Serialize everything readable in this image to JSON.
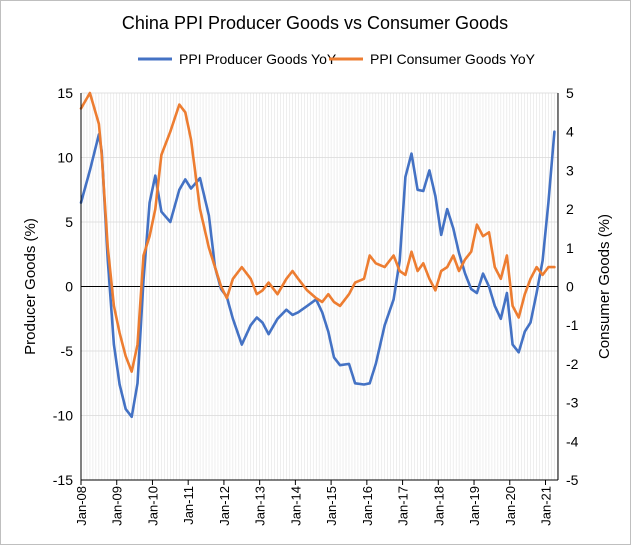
{
  "chart_data": {
    "type": "line",
    "title": "China PPI Producer Goods vs Consumer Goods",
    "ylabel": "Producer Goods (%)",
    "y2label": "Consumer Goods (%)",
    "ylim": [
      -15,
      15
    ],
    "y2lim": [
      -5,
      5
    ],
    "yticks": [
      -15,
      -10,
      -5,
      0,
      5,
      10,
      15
    ],
    "y2ticks": [
      -5,
      -4,
      -3,
      -2,
      -1,
      0,
      1,
      2,
      3,
      4,
      5
    ],
    "xticks": [
      "Jan-08",
      "Jan-09",
      "Jan-10",
      "Jan-11",
      "Jan-12",
      "Jan-13",
      "Jan-14",
      "Jan-15",
      "Jan-16",
      "Jan-17",
      "Jan-18",
      "Jan-19",
      "Jan-20",
      "Jan-21"
    ],
    "grid": true,
    "legend": "top-center",
    "x": [
      2008.0,
      2008.25,
      2008.5,
      2008.58,
      2008.75,
      2008.92,
      2009.08,
      2009.25,
      2009.42,
      2009.58,
      2009.75,
      2009.92,
      2010.08,
      2010.25,
      2010.5,
      2010.75,
      2010.92,
      2011.08,
      2011.33,
      2011.58,
      2011.75,
      2011.92,
      2012.08,
      2012.25,
      2012.5,
      2012.75,
      2012.92,
      2013.08,
      2013.25,
      2013.5,
      2013.75,
      2013.92,
      2014.08,
      2014.33,
      2014.58,
      2014.75,
      2014.92,
      2015.08,
      2015.25,
      2015.5,
      2015.67,
      2015.92,
      2016.08,
      2016.25,
      2016.5,
      2016.75,
      2016.92,
      2017.08,
      2017.25,
      2017.42,
      2017.58,
      2017.75,
      2017.92,
      2018.08,
      2018.25,
      2018.42,
      2018.58,
      2018.75,
      2018.92,
      2019.08,
      2019.25,
      2019.42,
      2019.58,
      2019.75,
      2019.92,
      2020.08,
      2020.25,
      2020.42,
      2020.58,
      2020.75,
      2020.92,
      2021.08,
      2021.25
    ],
    "series": [
      {
        "name": "PPI Producer Goods YoY",
        "axis": "left",
        "color": "#4472c4",
        "values": [
          6.5,
          9.0,
          11.8,
          10.5,
          2.0,
          -4.5,
          -7.6,
          -9.5,
          -10.1,
          -7.5,
          0.5,
          6.5,
          8.6,
          5.8,
          5.0,
          7.5,
          8.3,
          7.6,
          8.4,
          5.5,
          1.5,
          -0.2,
          -0.8,
          -2.5,
          -4.5,
          -3.0,
          -2.4,
          -2.8,
          -3.7,
          -2.5,
          -1.8,
          -2.2,
          -2.0,
          -1.5,
          -1.0,
          -2.0,
          -3.5,
          -5.5,
          -6.1,
          -6.0,
          -7.5,
          -7.6,
          -7.5,
          -6.0,
          -3.0,
          -1.0,
          2.0,
          8.5,
          10.3,
          7.5,
          7.4,
          9.0,
          7.0,
          4.0,
          6.0,
          4.5,
          2.6,
          1.0,
          -0.2,
          -0.5,
          1.0,
          0.0,
          -1.5,
          -2.5,
          -0.5,
          -4.5,
          -5.1,
          -3.5,
          -2.8,
          -0.5,
          2.0,
          6.5,
          12.0
        ]
      },
      {
        "name": "PPI Consumer Goods YoY",
        "axis": "right",
        "color": "#ed7d31",
        "values": [
          4.6,
          5.0,
          4.2,
          3.4,
          1.0,
          -0.5,
          -1.2,
          -1.8,
          -2.2,
          -1.5,
          0.8,
          1.3,
          2.0,
          3.4,
          4.0,
          4.7,
          4.5,
          3.8,
          2.0,
          1.0,
          0.5,
          0.0,
          -0.3,
          0.2,
          0.5,
          0.2,
          -0.2,
          -0.1,
          0.1,
          -0.2,
          0.2,
          0.4,
          0.2,
          -0.1,
          -0.3,
          -0.4,
          -0.2,
          -0.4,
          -0.5,
          -0.2,
          0.1,
          0.2,
          0.8,
          0.6,
          0.5,
          0.8,
          0.4,
          0.3,
          0.9,
          0.4,
          0.6,
          0.2,
          -0.1,
          0.4,
          0.5,
          0.8,
          0.4,
          0.7,
          0.9,
          1.6,
          1.3,
          1.4,
          0.5,
          0.2,
          0.8,
          -0.5,
          -0.8,
          -0.2,
          0.2,
          0.5,
          0.3,
          0.5,
          0.5
        ]
      }
    ]
  }
}
